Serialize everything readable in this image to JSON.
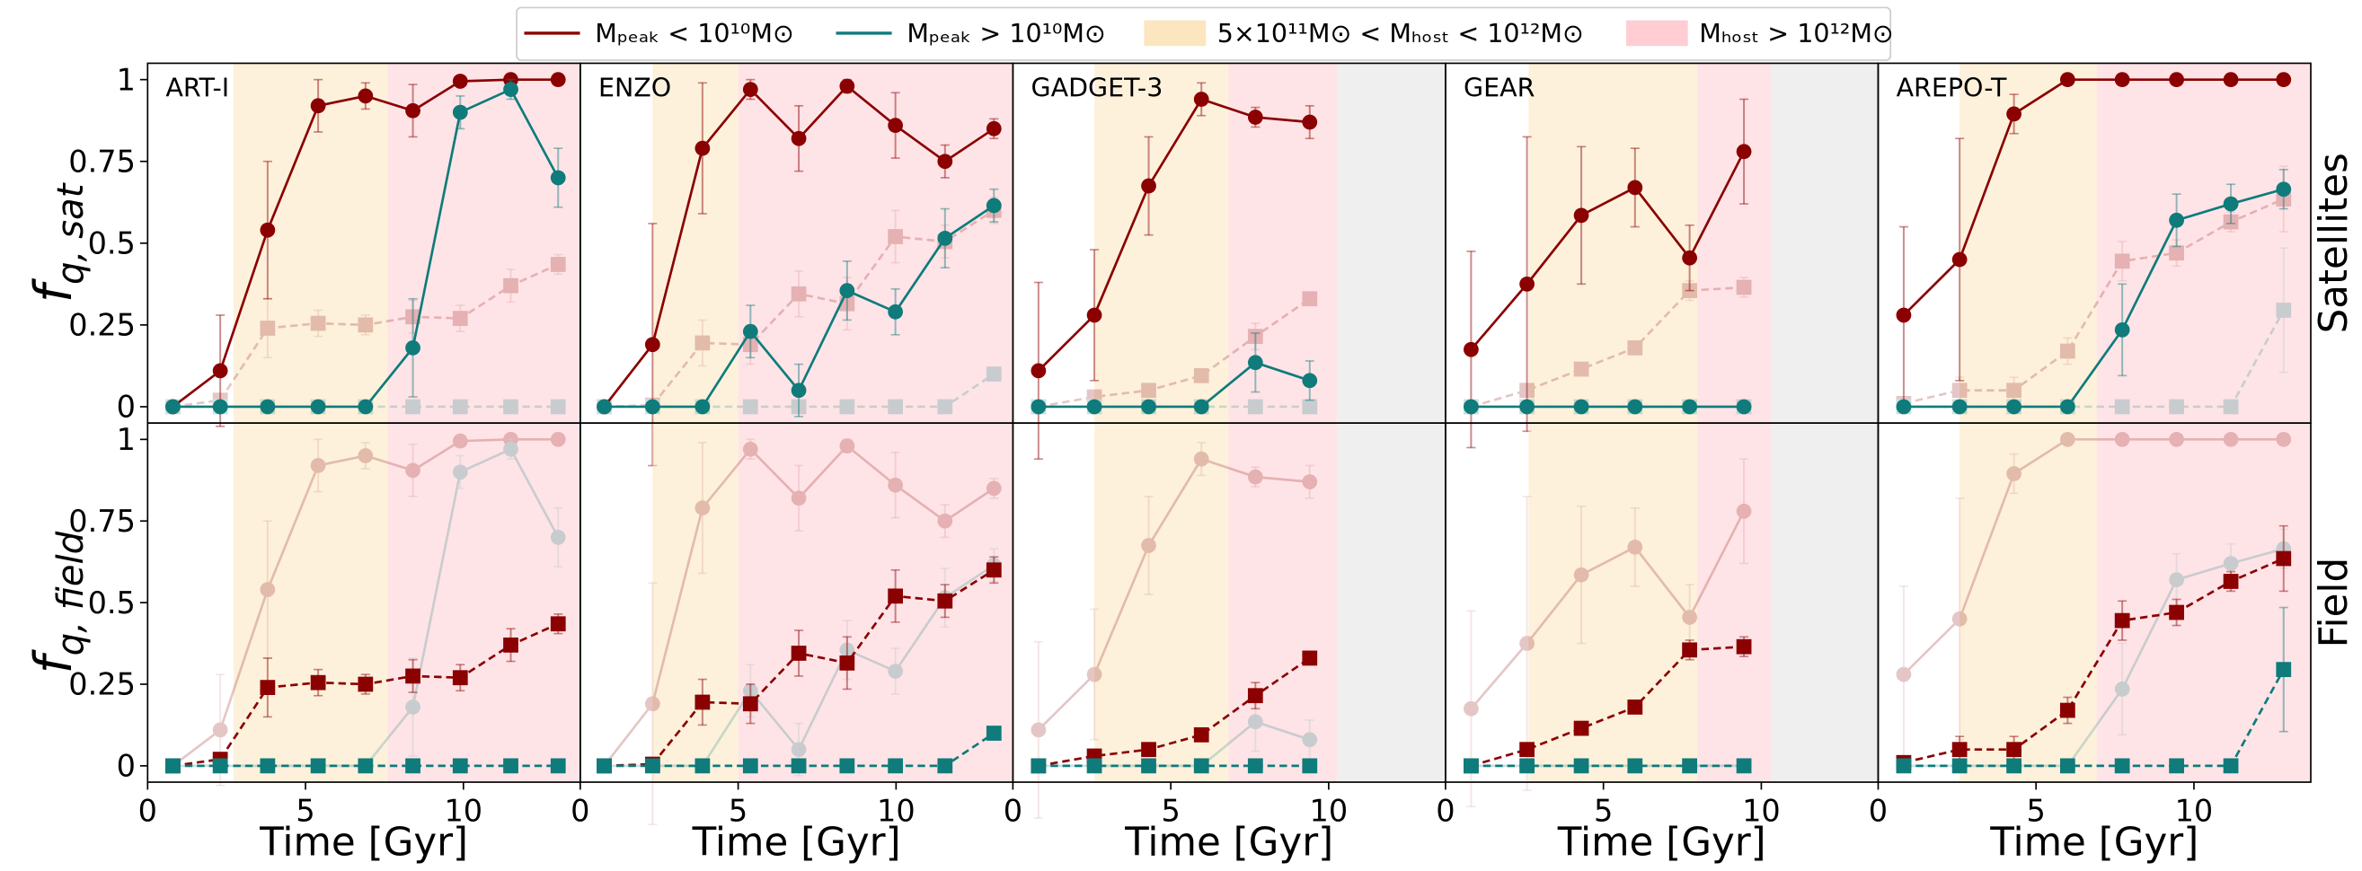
{
  "chart_data": {
    "type": "line",
    "legend": [
      {
        "name": "Mₚₑₐₖ < 10¹⁰M⊙",
        "color": "#8b0000"
      },
      {
        "name": "Mₚₑₐₖ > 10¹⁰M⊙",
        "color": "#0f7b7b"
      },
      {
        "name": "5×10¹¹M⊙ < Mₕₒₛₜ < 10¹²M⊙",
        "color": "#fbe6bf"
      },
      {
        "name": "Mₕₒₛₜ > 10¹²M⊙",
        "color": "#ffcdd3"
      }
    ],
    "styles": {
      "sat": {
        "marker": "circle",
        "linestyle": "solid"
      },
      "field": {
        "marker": "square",
        "linestyle": "dashed"
      }
    },
    "rows": [
      {
        "label": "Satellites",
        "sample": "sat",
        "ylabel": {
          "main": "f",
          "sub": "q, sat"
        }
      },
      {
        "label": "Field",
        "sample": "field",
        "ylabel": {
          "main": "f",
          "sub": "q, field"
        }
      }
    ],
    "xlabel": "Time [Gyr]",
    "ylim": [
      -0.05,
      1.05
    ],
    "yticks": [
      0,
      0.25,
      0.5,
      0.75,
      1
    ],
    "xlim": [
      0,
      13.7
    ],
    "xticks": [
      0,
      5,
      10
    ],
    "nodata_color": "#efefef",
    "panels": [
      {
        "title": "ART-I",
        "x": [
          0.8,
          2.3,
          3.8,
          5.4,
          6.9,
          8.4,
          9.9,
          11.5,
          13.0
        ],
        "bands": [
          [
            2.72,
            7.59
          ],
          [
            7.59,
            13.7
          ]
        ],
        "sat": [
          {
            "values": [
              0,
              0.11,
              0.54,
              0.92,
              0.95,
              0.905,
              0.995,
              1.0,
              1.0
            ],
            "errors": [
              0,
              0.17,
              0.21,
              0.08,
              0.04,
              0.08,
              0.01,
              0,
              0
            ]
          },
          {
            "values": [
              0,
              0,
              0,
              0,
              0,
              0.18,
              0.9,
              0.97,
              0.7
            ],
            "errors": [
              0,
              0,
              0,
              0,
              0,
              0.15,
              0.05,
              0.03,
              0.09
            ]
          }
        ],
        "field": [
          {
            "values": [
              0,
              0.02,
              0.24,
              0.255,
              0.25,
              0.275,
              0.27,
              0.37,
              0.435
            ],
            "errors": [
              0,
              0.02,
              0.09,
              0.04,
              0.03,
              0.05,
              0.04,
              0.05,
              0.03
            ]
          },
          {
            "values": [
              0,
              0,
              0,
              0,
              0,
              0,
              0,
              0,
              0
            ],
            "errors": [
              0,
              0,
              0,
              0,
              0,
              0,
              0,
              0,
              0
            ]
          }
        ]
      },
      {
        "title": "ENZO",
        "x": [
          0.76,
          2.29,
          3.87,
          5.39,
          6.92,
          8.45,
          9.98,
          11.55,
          13.1
        ],
        "bands": [
          [
            2.29,
            5.01
          ],
          [
            5.01,
            13.7
          ]
        ],
        "sat": [
          {
            "values": [
              0,
              0.19,
              0.79,
              0.97,
              0.82,
              0.98,
              0.86,
              0.75,
              0.85
            ],
            "errors": [
              0,
              0.37,
              0.2,
              0.03,
              0.1,
              0.02,
              0.1,
              0.05,
              0.03
            ]
          },
          {
            "values": [
              0,
              0,
              0,
              0.23,
              0.05,
              0.355,
              0.29,
              0.515,
              0.615
            ],
            "errors": [
              0,
              0,
              0,
              0.08,
              0.08,
              0.09,
              0.07,
              0.09,
              0.05
            ]
          }
        ],
        "field": [
          {
            "values": [
              0,
              0.005,
              0.195,
              0.19,
              0.345,
              0.315,
              0.52,
              0.505,
              0.6
            ],
            "errors": [
              0,
              0.01,
              0.07,
              0.06,
              0.07,
              0.08,
              0.08,
              0.05,
              0.04
            ]
          },
          {
            "values": [
              0,
              0,
              0,
              0,
              0,
              0,
              0,
              0,
              0.1
            ],
            "errors": [
              0,
              0,
              0,
              0,
              0,
              0,
              0,
              0,
              0.01
            ]
          }
        ]
      },
      {
        "title": "GADGET-3",
        "x": [
          0.81,
          2.58,
          4.3,
          5.97,
          7.68,
          9.4
        ],
        "bands": [
          [
            2.58,
            6.83
          ],
          [
            6.83,
            10.26
          ]
        ],
        "nodata": [
          10.26,
          13.7
        ],
        "sat": [
          {
            "values": [
              0.11,
              0.28,
              0.675,
              0.94,
              0.885,
              0.87
            ],
            "errors": [
              0.27,
              0.2,
              0.15,
              0.05,
              0.03,
              0.05
            ]
          },
          {
            "values": [
              0,
              0,
              0,
              0,
              0.135,
              0.08
            ],
            "errors": [
              0,
              0,
              0,
              0,
              0.09,
              0.06
            ]
          }
        ],
        "field": [
          {
            "values": [
              0,
              0.03,
              0.05,
              0.095,
              0.215,
              0.33
            ],
            "errors": [
              0,
              0.02,
              0.02,
              0.02,
              0.04,
              0.02
            ]
          },
          {
            "values": [
              0,
              0,
              0,
              0,
              0,
              0
            ],
            "errors": [
              0,
              0,
              0,
              0,
              0,
              0
            ]
          }
        ]
      },
      {
        "title": "GEAR",
        "x": [
          0.81,
          2.58,
          4.3,
          6.0,
          7.73,
          9.45
        ],
        "bands": [
          [
            2.63,
            7.97
          ],
          [
            7.97,
            10.31
          ]
        ],
        "nodata": [
          10.31,
          13.7
        ],
        "sat": [
          {
            "values": [
              0.175,
              0.375,
              0.585,
              0.67,
              0.455,
              0.78
            ],
            "errors": [
              0.3,
              0.45,
              0.21,
              0.12,
              0.1,
              0.16
            ]
          },
          {
            "values": [
              0,
              0,
              0,
              0,
              0,
              0
            ],
            "errors": [
              0,
              0,
              0,
              0,
              0,
              0
            ]
          }
        ],
        "field": [
          {
            "values": [
              0,
              0.05,
              0.115,
              0.18,
              0.355,
              0.365
            ],
            "errors": [
              0,
              0.02,
              0.02,
              0.02,
              0.03,
              0.03
            ]
          },
          {
            "values": [
              0,
              0,
              0,
              0,
              0,
              0
            ],
            "errors": [
              0,
              0,
              0,
              0,
              0,
              0
            ]
          }
        ]
      },
      {
        "title": "AREPO-T",
        "x": [
          0.81,
          2.58,
          4.3,
          6.0,
          7.73,
          9.45,
          11.17,
          12.84
        ],
        "bands": [
          [
            2.58,
            6.92
          ],
          [
            6.92,
            13.7
          ]
        ],
        "sat": [
          {
            "values": [
              0.28,
              0.45,
              0.895,
              1,
              1,
              1,
              1,
              1
            ],
            "errors": [
              0.27,
              0.37,
              0.06,
              0,
              0,
              0,
              0,
              0
            ]
          },
          {
            "values": [
              0,
              0,
              0,
              0,
              0.235,
              0.57,
              0.62,
              0.665
            ],
            "errors": [
              0,
              0,
              0,
              0,
              0.14,
              0.08,
              0.06,
              0.06
            ]
          }
        ],
        "field": [
          {
            "values": [
              0.01,
              0.05,
              0.05,
              0.17,
              0.445,
              0.47,
              0.565,
              0.635
            ],
            "errors": [
              0.01,
              0.04,
              0.04,
              0.04,
              0.06,
              0.04,
              0.03,
              0.1
            ]
          },
          {
            "values": [
              0,
              0,
              0,
              0,
              0,
              0,
              0,
              0.295
            ],
            "errors": [
              0,
              0,
              0,
              0,
              0,
              0,
              0,
              0.19
            ]
          }
        ]
      }
    ]
  }
}
